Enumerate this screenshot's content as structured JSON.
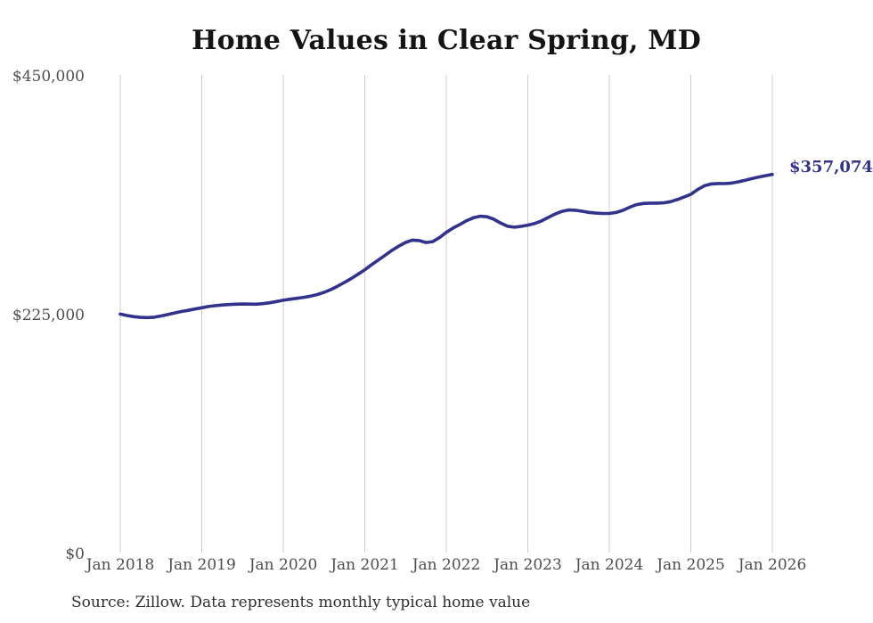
{
  "title": "Home Values in Clear Spring, MD",
  "annotation": {
    "label": "$357,074"
  },
  "source_note": "Source: Zillow. Data represents monthly typical home value",
  "colors": {
    "line": "#32328c",
    "grid": "#cccccc",
    "tick_label": "#4e4e4e",
    "title": "#141414",
    "annotation": "#32328c",
    "background": "#ffffff"
  },
  "chart_data": {
    "type": "line",
    "title": "Home Values in Clear Spring, MD",
    "frequency": "monthly",
    "x_start": "Jan 2018",
    "x_end": "Jan 2026",
    "x_tick_labels": [
      "Jan 2018",
      "Jan 2019",
      "Jan 2020",
      "Jan 2021",
      "Jan 2022",
      "Jan 2023",
      "Jan 2024",
      "Jan 2025",
      "Jan 2026"
    ],
    "y_tick_labels": [
      "$0",
      "$225,000",
      "$450,000"
    ],
    "y_tick_values": [
      0,
      225000,
      450000
    ],
    "ylim": [
      0,
      450000
    ],
    "grid": "vertical-only",
    "legend": "none",
    "final_value_label": "$357,074",
    "values": [
      225500,
      224200,
      223100,
      222400,
      222200,
      222600,
      223700,
      225100,
      226600,
      227900,
      229000,
      230300,
      231500,
      232600,
      233500,
      234100,
      234500,
      234800,
      235000,
      234900,
      234800,
      235300,
      236200,
      237300,
      238500,
      239500,
      240400,
      241300,
      242400,
      243900,
      246000,
      248600,
      251800,
      255300,
      259000,
      263000,
      267200,
      272000,
      276500,
      281000,
      285500,
      289500,
      293000,
      295200,
      294800,
      292900,
      293800,
      297500,
      302500,
      306500,
      310000,
      313500,
      316300,
      317700,
      317200,
      314800,
      311200,
      308300,
      307400,
      308100,
      309300,
      310800,
      313200,
      316500,
      319700,
      322200,
      323600,
      323300,
      322400,
      321300,
      320600,
      320300,
      320300,
      321200,
      323200,
      326200,
      328600,
      329700,
      330000,
      330000,
      330300,
      331400,
      333400,
      335700,
      338300,
      342800,
      346400,
      348100,
      348500,
      348400,
      348900,
      350100,
      351600,
      353100,
      354600,
      355900,
      357074
    ]
  }
}
